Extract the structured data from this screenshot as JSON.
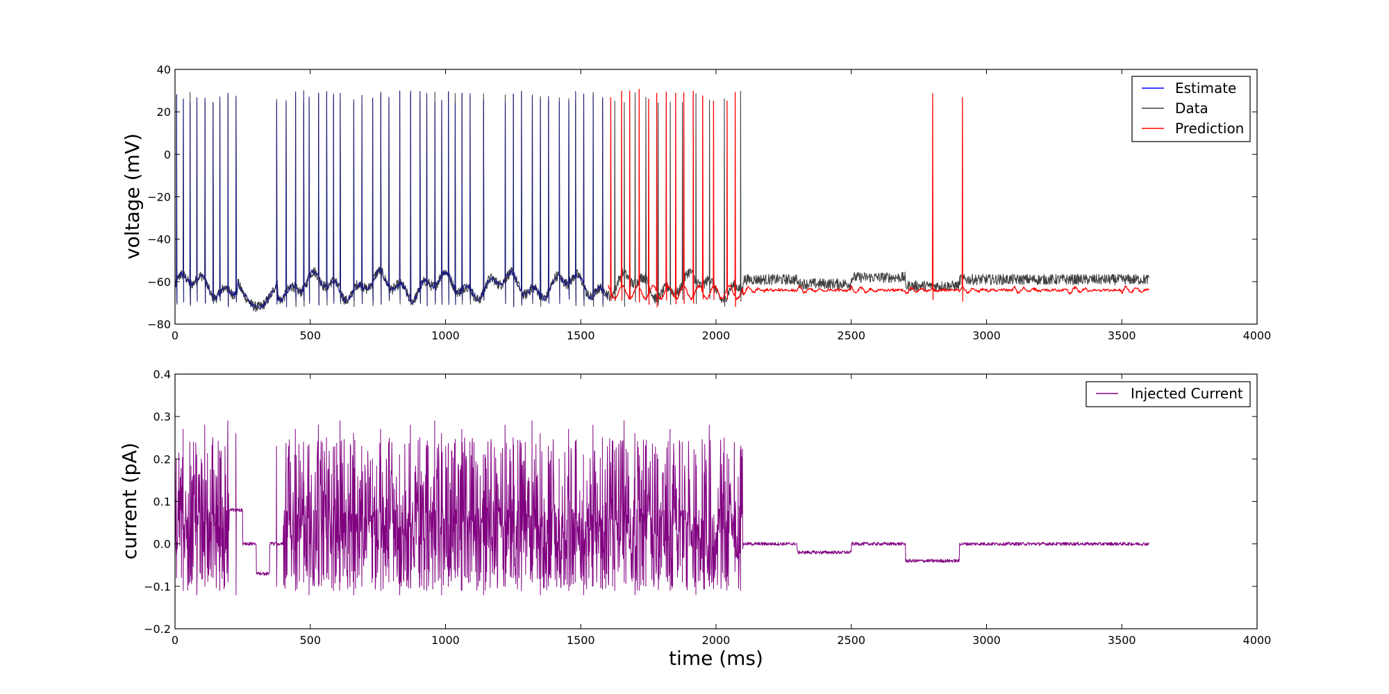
{
  "chart_data": [
    {
      "type": "line",
      "title": "",
      "xlabel": "",
      "ylabel": "voltage (mV)",
      "xlim": [
        0,
        4000
      ],
      "ylim": [
        -80,
        40
      ],
      "xticks": [
        "0",
        "500",
        "1000",
        "1500",
        "2000",
        "2500",
        "3000",
        "3500",
        "4000"
      ],
      "yticks": [
        "−80",
        "−60",
        "−40",
        "−20",
        "0",
        "20",
        "40"
      ],
      "legend_position": "top-right",
      "series": [
        {
          "name": "Estimate",
          "color": "#0000ff",
          "t_range": [
            0,
            1600
          ],
          "spike_times_ms": [
            5,
            30,
            55,
            80,
            110,
            140,
            165,
            195,
            225,
            375,
            410,
            445,
            475,
            495,
            530,
            560,
            585,
            610,
            660,
            690,
            730,
            760,
            790,
            830,
            870,
            905,
            930,
            960,
            985,
            1010,
            1035,
            1060,
            1090,
            1140,
            1220,
            1250,
            1280,
            1320,
            1350,
            1380,
            1420,
            1455,
            1480,
            1510,
            1545,
            1580
          ],
          "baseline_mV": -62,
          "spike_peak_mV": 27
        },
        {
          "name": "Data",
          "color": "#404040",
          "t_range": [
            0,
            3600
          ],
          "spike_times_ms": [
            5,
            30,
            55,
            80,
            110,
            140,
            165,
            195,
            225,
            375,
            410,
            445,
            475,
            495,
            530,
            560,
            585,
            610,
            660,
            690,
            730,
            760,
            790,
            830,
            870,
            905,
            930,
            960,
            985,
            1010,
            1035,
            1060,
            1090,
            1140,
            1220,
            1250,
            1280,
            1320,
            1350,
            1380,
            1420,
            1455,
            1480,
            1510,
            1545,
            1580,
            1625,
            1660,
            1700,
            1740,
            1785,
            1830,
            1875,
            1925,
            1975,
            2030,
            2090
          ],
          "late_segments_mV": [
            [
              2100,
              2300,
              -59
            ],
            [
              2300,
              2500,
              -61
            ],
            [
              2500,
              2700,
              -58
            ],
            [
              2700,
              2900,
              -62
            ],
            [
              2900,
              3600,
              -59
            ]
          ],
          "spike_peak_mV": 27
        },
        {
          "name": "Prediction",
          "color": "#ff0000",
          "t_range": [
            1600,
            3600
          ],
          "spike_times_ms": [
            1610,
            1650,
            1680,
            1715,
            1750,
            1780,
            1815,
            1850,
            1880,
            1915,
            1950,
            1990,
            2040,
            2070,
            2800,
            2910
          ],
          "rest_mV": -64,
          "spike_peak_mV": 28
        }
      ]
    },
    {
      "type": "line",
      "title": "",
      "xlabel": "time (ms)",
      "ylabel": "current (pA)",
      "xlim": [
        0,
        4000
      ],
      "ylim": [
        -0.2,
        0.4
      ],
      "xticks": [
        "0",
        "500",
        "1000",
        "1500",
        "2000",
        "2500",
        "3000",
        "3500",
        "4000"
      ],
      "yticks": [
        "−0.2",
        "−0.1",
        "0.0",
        "0.1",
        "0.2",
        "0.3",
        "0.4"
      ],
      "legend_position": "top-right",
      "series": [
        {
          "name": "Injected Current",
          "color": "#800080",
          "t_range": [
            0,
            3600
          ],
          "pulse_times_ms": [
            5,
            30,
            55,
            80,
            110,
            140,
            165,
            195,
            225,
            375,
            410,
            445,
            475,
            495,
            530,
            560,
            585,
            610,
            660,
            690,
            730,
            760,
            790,
            830,
            870,
            905,
            930,
            960,
            985,
            1010,
            1035,
            1060,
            1090,
            1140,
            1220,
            1250,
            1280,
            1320,
            1350,
            1380,
            1420,
            1455,
            1480,
            1510,
            1545,
            1580,
            1625,
            1660,
            1700,
            1740,
            1785,
            1830,
            1875,
            1925,
            1975,
            2030,
            2090
          ],
          "step_segments_pA": [
            [
              200,
              250,
              0.08
            ],
            [
              250,
              300,
              0.0
            ],
            [
              300,
              350,
              -0.07
            ],
            [
              350,
              400,
              0.0
            ],
            [
              2100,
              2300,
              0.0
            ],
            [
              2300,
              2500,
              -0.02
            ],
            [
              2500,
              2700,
              0.0
            ],
            [
              2700,
              2900,
              -0.04
            ],
            [
              2900,
              3600,
              0.0
            ]
          ],
          "max_pA": 0.32,
          "min_pA": -0.12
        }
      ]
    }
  ]
}
